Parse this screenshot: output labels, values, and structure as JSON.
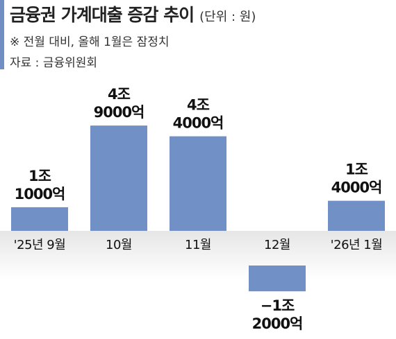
{
  "header": {
    "title": "금융권 가계대출 증감 추이",
    "unit": "(단위 : 원)",
    "note": "※ 전월 대비, 올해 1월은 잠정치",
    "source": "자료 : 금융위원회"
  },
  "colors": {
    "bar": "#7191c6",
    "accent": "#6f8fc4",
    "zero_band": "#e6e6e6"
  },
  "chart_data": {
    "type": "bar",
    "categories": [
      "'25년 9월",
      "10월",
      "11월",
      "12월",
      "'26년 1월"
    ],
    "values": [
      1.1,
      4.9,
      4.4,
      -1.2,
      1.4
    ],
    "value_labels": [
      [
        "1조",
        "1000억"
      ],
      [
        "4조",
        "9000억"
      ],
      [
        "4조",
        "4000억"
      ],
      [
        "−1조",
        "2000억"
      ],
      [
        "1조",
        "4000억"
      ]
    ],
    "ylim": [
      -1.2,
      4.9
    ],
    "grid": false,
    "legend": "none"
  }
}
